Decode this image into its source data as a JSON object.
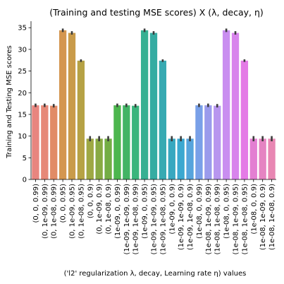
{
  "chart_data": {
    "type": "bar",
    "title": "(Training and testing MSE scores) X (λ, decay, η)",
    "xlabel": "('l2' regularization λ, decay, Learning rate η) values",
    "ylabel": "Training and Testing MSE scores",
    "ylim": [
      0,
      36.5
    ],
    "yticks": [
      0,
      5,
      10,
      15,
      20,
      25,
      30,
      35
    ],
    "grid": false,
    "categories": [
      "(0, 0, 0.99)",
      "(0, 1e-09, 0.99)",
      "(0, 1e-08, 0.99)",
      "(0, 0, 0.95)",
      "(0, 1e-09, 0.95)",
      "(0, 1e-08, 0.95)",
      "(0, 0, 0.9)",
      "(0, 1e-09, 0.9)",
      "(0, 1e-08, 0.9)",
      "(1e-09, 0, 0.99)",
      "(1e-09, 1e-09, 0.99)",
      "(1e-09, 1e-08, 0.99)",
      "(1e-09, 0, 0.95)",
      "(1e-09, 1e-09, 0.95)",
      "(1e-09, 1e-08, 0.95)",
      "(1e-09, 0, 0.9)",
      "(1e-09, 1e-09, 0.9)",
      "(1e-09, 1e-08, 0.9)",
      "(1e-08, 0, 0.99)",
      "(1e-08, 1e-09, 0.99)",
      "(1e-08, 1e-08, 0.99)",
      "(1e-08, 0, 0.95)",
      "(1e-08, 1e-09, 0.95)",
      "(1e-08, 1e-08, 0.95)",
      "(1e-08, 0, 0.9)",
      "(1e-08, 1e-09, 0.9)",
      "(1e-08, 1e-08, 0.9)"
    ],
    "values": [
      17.1,
      17.1,
      17.0,
      34.4,
      33.8,
      27.4,
      9.4,
      9.4,
      9.4,
      17.1,
      17.1,
      17.0,
      34.4,
      33.8,
      27.4,
      9.4,
      9.4,
      9.4,
      17.1,
      17.1,
      17.0,
      34.4,
      33.8,
      27.4,
      9.4,
      9.4,
      9.4
    ],
    "errors": [
      0.4,
      0.4,
      0.4,
      0.4,
      0.4,
      0.3,
      0.6,
      0.6,
      0.6,
      0.4,
      0.4,
      0.4,
      0.4,
      0.4,
      0.3,
      0.6,
      0.6,
      0.6,
      0.4,
      0.4,
      0.4,
      0.4,
      0.4,
      0.3,
      0.6,
      0.6,
      0.6
    ],
    "colors": [
      "#e8857f",
      "#e68978",
      "#e18b66",
      "#d49650",
      "#c99b4a",
      "#b6a245",
      "#9ea844",
      "#88aa44",
      "#73ad45",
      "#4db64e",
      "#42b465",
      "#3ab57c",
      "#36b092",
      "#35aca2",
      "#37aab2",
      "#38a8c0",
      "#3ba8d0",
      "#56a4dc",
      "#79a0e8",
      "#9a9bec",
      "#b896ef",
      "#c98ef0",
      "#d884ec",
      "#e47be6",
      "#e37fd2",
      "#e584c2",
      "#e887b3"
    ]
  }
}
